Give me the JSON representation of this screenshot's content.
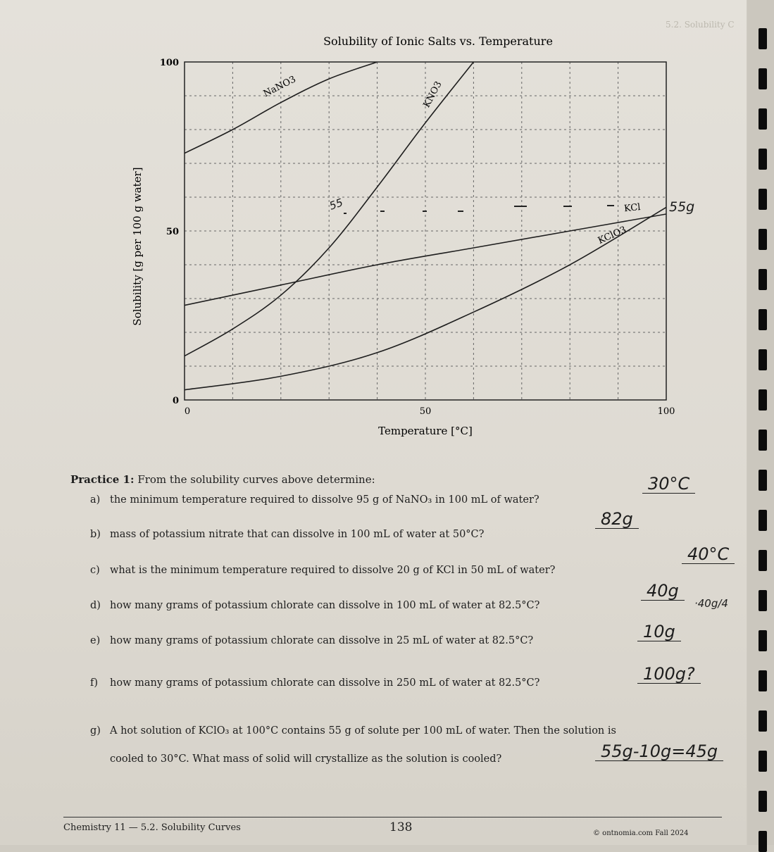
{
  "chart_data": {
    "type": "line",
    "title": "Solubility of Ionic Salts vs. Temperature",
    "xlabel": "Temperature [°C]",
    "ylabel": "Solubility [g per 100 g water]",
    "xlim": [
      0,
      100
    ],
    "ylim": [
      0,
      100
    ],
    "x_ticks": [
      "0",
      "50",
      "100"
    ],
    "y_ticks": [
      "0",
      "50",
      "100"
    ],
    "grid": true,
    "series": [
      {
        "name": "NaNO3",
        "x": [
          0,
          10,
          20,
          30,
          40
        ],
        "y": [
          73,
          80,
          88,
          95,
          100
        ]
      },
      {
        "name": "KNO3",
        "x": [
          0,
          10,
          20,
          30,
          40,
          50,
          60
        ],
        "y": [
          13,
          21,
          31,
          45,
          63,
          82,
          100
        ]
      },
      {
        "name": "KCl",
        "x": [
          0,
          20,
          40,
          60,
          80,
          100
        ],
        "y": [
          28,
          34,
          40,
          45,
          50,
          55
        ]
      },
      {
        "name": "KClO3",
        "x": [
          0,
          20,
          40,
          60,
          80,
          100
        ],
        "y": [
          3,
          7,
          14,
          26,
          40,
          57
        ]
      }
    ]
  },
  "handwriting": {
    "chart_mark": "55",
    "chart_mark_right": "55g"
  },
  "practice": {
    "heading": "Practice 1:",
    "intro": "From the solubility curves above determine:",
    "questions": [
      {
        "letter": "a)",
        "text": "the minimum temperature required to dissolve 95 g of NaNO₃ in 100 mL of water?",
        "answer": "30°C"
      },
      {
        "letter": "b)",
        "text": "mass of potassium nitrate that can dissolve in 100 mL of water at 50°C?",
        "answer": "82g"
      },
      {
        "letter": "c)",
        "text": "what is the minimum temperature required to dissolve 20 g of KCl in 50 mL of water?",
        "answer": "40°C"
      },
      {
        "letter": "d)",
        "text": "how many grams of potassium chlorate can dissolve in 100 mL of water at 82.5°C?",
        "answer": "40g"
      },
      {
        "letter": "e)",
        "text": "how many grams of potassium chlorate can dissolve in 25 mL of water at 82.5°C?",
        "answer": "10g"
      },
      {
        "letter": "f)",
        "text": "how many grams of potassium chlorate can dissolve in 250 mL of water at 82.5°C?",
        "answer": "100g?"
      },
      {
        "letter": "g)",
        "text": "A hot solution of KClO₃ at 100°C contains 55 g of solute per 100 mL of water. Then the solution is",
        "text2": "cooled to 30°C. What mass of solid will crystallize as the solution is cooled?",
        "answer": "55g-10g=45g"
      }
    ],
    "side_note": "·40g/4"
  },
  "footer": {
    "left": "Chemistry 11 — 5.2. Solubility Curves",
    "page": "138",
    "right": "© ontnomia.com   Fall 2024"
  }
}
